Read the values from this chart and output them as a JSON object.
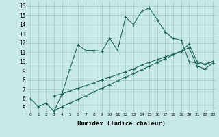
{
  "xlabel": "Humidex (Indice chaleur)",
  "background_color": "#c8e8e8",
  "grid_color": "#a0c8c8",
  "line_color": "#1a6655",
  "xlim": [
    -0.5,
    23.5
  ],
  "ylim": [
    4.5,
    16.5
  ],
  "xticks": [
    0,
    1,
    2,
    3,
    4,
    5,
    6,
    7,
    8,
    9,
    10,
    11,
    12,
    13,
    14,
    15,
    16,
    17,
    18,
    19,
    20,
    21,
    22,
    23
  ],
  "yticks": [
    5,
    6,
    7,
    8,
    9,
    10,
    11,
    12,
    13,
    14,
    15,
    16
  ],
  "line1_x": [
    0,
    1,
    2,
    3,
    4,
    5,
    6,
    7,
    8,
    9,
    10,
    11,
    12,
    13,
    14,
    15,
    16,
    17,
    18,
    19,
    20,
    21,
    22,
    23
  ],
  "line1_y": [
    6.0,
    5.1,
    5.5,
    4.6,
    6.5,
    9.2,
    11.8,
    11.2,
    11.2,
    11.1,
    12.5,
    11.2,
    14.8,
    14.0,
    15.4,
    15.8,
    14.5,
    13.2,
    12.5,
    12.3,
    10.0,
    9.8,
    9.7,
    10.0
  ],
  "line2_x": [
    3,
    4,
    5,
    6,
    7,
    8,
    9,
    10,
    11,
    12,
    13,
    14,
    15,
    16,
    17,
    18,
    19,
    20,
    21,
    22,
    23
  ],
  "line2_y": [
    6.3,
    6.5,
    6.8,
    7.1,
    7.4,
    7.7,
    8.0,
    8.3,
    8.6,
    8.9,
    9.2,
    9.6,
    9.9,
    10.2,
    10.5,
    10.8,
    11.1,
    11.9,
    10.0,
    9.7,
    10.0
  ],
  "line3_x": [
    3,
    4,
    5,
    6,
    7,
    8,
    9,
    10,
    11,
    12,
    13,
    14,
    15,
    16,
    17,
    18,
    19,
    20,
    21,
    22,
    23
  ],
  "line3_y": [
    4.7,
    5.1,
    5.5,
    5.9,
    6.3,
    6.7,
    7.1,
    7.5,
    7.9,
    8.3,
    8.7,
    9.1,
    9.5,
    9.9,
    10.3,
    10.7,
    11.1,
    11.5,
    9.5,
    9.2,
    9.8
  ]
}
